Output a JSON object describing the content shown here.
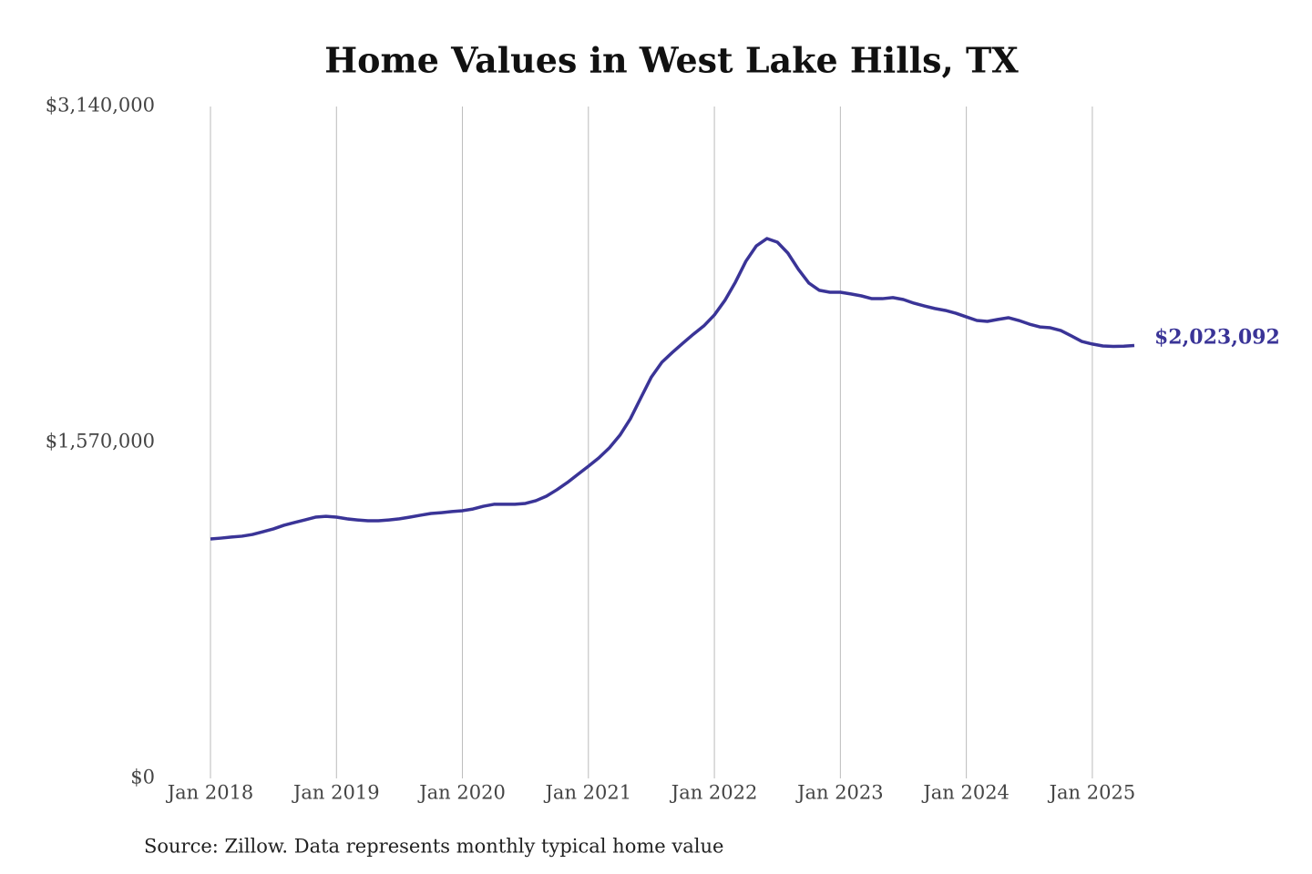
{
  "chart_data": {
    "type": "line",
    "title": "Home Values in West Lake Hills, TX",
    "source": "Source: Zillow. Data represents monthly typical home value",
    "x": [
      "2018-01",
      "2018-02",
      "2018-03",
      "2018-04",
      "2018-05",
      "2018-06",
      "2018-07",
      "2018-08",
      "2018-09",
      "2018-10",
      "2018-11",
      "2018-12",
      "2019-01",
      "2019-02",
      "2019-03",
      "2019-04",
      "2019-05",
      "2019-06",
      "2019-07",
      "2019-08",
      "2019-09",
      "2019-10",
      "2019-11",
      "2019-12",
      "2020-01",
      "2020-02",
      "2020-03",
      "2020-04",
      "2020-05",
      "2020-06",
      "2020-07",
      "2020-08",
      "2020-09",
      "2020-10",
      "2020-11",
      "2020-12",
      "2021-01",
      "2021-02",
      "2021-03",
      "2021-04",
      "2021-05",
      "2021-06",
      "2021-07",
      "2021-08",
      "2021-09",
      "2021-10",
      "2021-11",
      "2021-12",
      "2022-01",
      "2022-02",
      "2022-03",
      "2022-04",
      "2022-05",
      "2022-06",
      "2022-07",
      "2022-08",
      "2022-09",
      "2022-10",
      "2022-11",
      "2022-12",
      "2023-01",
      "2023-02",
      "2023-03",
      "2023-04",
      "2023-05",
      "2023-06",
      "2023-07",
      "2023-08",
      "2023-09",
      "2023-10",
      "2023-11",
      "2023-12",
      "2024-01",
      "2024-02",
      "2024-03",
      "2024-04",
      "2024-05",
      "2024-06",
      "2024-07",
      "2024-08",
      "2024-09",
      "2024-10",
      "2024-11",
      "2024-12",
      "2025-01",
      "2025-02",
      "2025-03",
      "2025-04",
      "2025-05"
    ],
    "series": [
      {
        "name": "West Lake Hills, TX",
        "color": "#3a3497",
        "values": [
          1119000,
          1123000,
          1128000,
          1132000,
          1140000,
          1153000,
          1166000,
          1183000,
          1196000,
          1208000,
          1221000,
          1225000,
          1221000,
          1213000,
          1208000,
          1204000,
          1204000,
          1208000,
          1213000,
          1221000,
          1230000,
          1238000,
          1242000,
          1247000,
          1251000,
          1259000,
          1272000,
          1281000,
          1281000,
          1281000,
          1285000,
          1298000,
          1319000,
          1349000,
          1383000,
          1421000,
          1459000,
          1498000,
          1545000,
          1604000,
          1681000,
          1779000,
          1876000,
          1945000,
          1991000,
          2034000,
          2076000,
          2115000,
          2166000,
          2234000,
          2319000,
          2417000,
          2489000,
          2523000,
          2506000,
          2455000,
          2379000,
          2315000,
          2281000,
          2272000,
          2272000,
          2264000,
          2255000,
          2242000,
          2242000,
          2247000,
          2238000,
          2221000,
          2208000,
          2196000,
          2187000,
          2174000,
          2157000,
          2140000,
          2136000,
          2145000,
          2153000,
          2140000,
          2123000,
          2110000,
          2106000,
          2093000,
          2068000,
          2042000,
          2030000,
          2021000,
          2019000,
          2020000,
          2023092
        ],
        "value_labels": [
          null,
          null,
          null,
          null,
          null,
          null,
          null,
          null,
          null,
          null,
          null,
          null,
          null,
          null,
          null,
          null,
          null,
          null,
          null,
          null,
          null,
          null,
          null,
          null,
          null,
          null,
          null,
          null,
          null,
          null,
          null,
          null,
          null,
          null,
          null,
          null,
          null,
          null,
          null,
          null,
          null,
          null,
          null,
          null,
          null,
          null,
          null,
          null,
          null,
          null,
          null,
          null,
          null,
          null,
          null,
          null,
          null,
          null,
          null,
          null,
          null,
          null,
          null,
          null,
          null,
          null,
          null,
          null,
          null,
          null,
          null,
          null,
          null,
          null,
          null,
          null,
          null,
          null,
          null,
          null,
          null,
          null,
          null,
          null,
          null,
          null,
          null,
          null,
          "$2,023,092"
        ]
      }
    ],
    "xlim": [
      "2018-01",
      "2025-05"
    ],
    "xticks": [
      {
        "value": "2018-01",
        "label": "Jan 2018"
      },
      {
        "value": "2019-01",
        "label": "Jan 2019"
      },
      {
        "value": "2020-01",
        "label": "Jan 2020"
      },
      {
        "value": "2021-01",
        "label": "Jan 2021"
      },
      {
        "value": "2022-01",
        "label": "Jan 2022"
      },
      {
        "value": "2023-01",
        "label": "Jan 2023"
      },
      {
        "value": "2024-01",
        "label": "Jan 2024"
      },
      {
        "value": "2025-01",
        "label": "Jan 2025"
      }
    ],
    "ylim": [
      0,
      3140000
    ],
    "yticks": [
      {
        "value": 0,
        "label": "$0"
      },
      {
        "value": 1570000,
        "label": "$1,570,000"
      },
      {
        "value": 3140000,
        "label": "$3,140,000"
      }
    ],
    "grid": "x"
  }
}
